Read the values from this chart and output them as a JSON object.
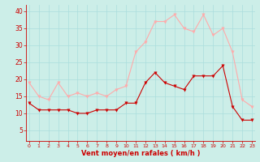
{
  "x": [
    0,
    1,
    2,
    3,
    4,
    5,
    6,
    7,
    8,
    9,
    10,
    11,
    12,
    13,
    14,
    15,
    16,
    17,
    18,
    19,
    20,
    21,
    22,
    23
  ],
  "avg_wind": [
    13,
    11,
    11,
    11,
    11,
    10,
    10,
    11,
    11,
    11,
    13,
    13,
    19,
    22,
    19,
    18,
    17,
    21,
    21,
    21,
    24,
    12,
    8,
    8
  ],
  "gusts": [
    19,
    15,
    14,
    19,
    15,
    16,
    15,
    16,
    15,
    17,
    18,
    28,
    31,
    37,
    37,
    39,
    35,
    34,
    39,
    33,
    35,
    28,
    14,
    12
  ],
  "avg_color": "#cc0000",
  "gust_color": "#ffaaaa",
  "bg_color": "#cceee8",
  "grid_color": "#aadddd",
  "xlabel": "Vent moyen/en rafales ( km/h )",
  "xlabel_color": "#cc0000",
  "tick_color": "#cc0000",
  "ylim": [
    2,
    42
  ],
  "yticks": [
    5,
    10,
    15,
    20,
    25,
    30,
    35,
    40
  ],
  "xticks": [
    0,
    1,
    2,
    3,
    4,
    5,
    6,
    7,
    8,
    9,
    10,
    11,
    12,
    13,
    14,
    15,
    16,
    17,
    18,
    19,
    20,
    21,
    22,
    23
  ]
}
